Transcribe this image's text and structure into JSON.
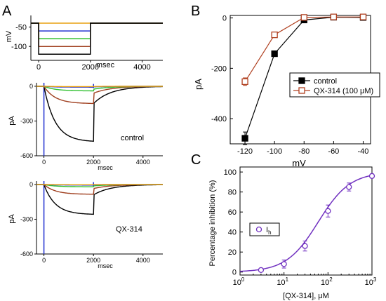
{
  "chart_data": [
    {
      "panel": "A",
      "type": "line",
      "subplots": [
        {
          "id": "protocol",
          "ylabel": "mV",
          "xlabel": "msec",
          "y_ticks": [
            "-50",
            "-100"
          ],
          "x_ticks": [
            "0",
            "2000",
            "4000"
          ],
          "ylim": [
            -125,
            -20
          ],
          "xlim": [
            -300,
            4800
          ],
          "series": [
            {
              "color": "#e8a010",
              "x": [
                -300,
                4800
              ],
              "y": [
                -40,
                -40
              ]
            },
            {
              "color": "#2030d0",
              "x": [
                -300,
                0,
                0,
                2000,
                2000,
                4800
              ],
              "y": [
                -40,
                -40,
                -60,
                -60,
                -40,
                -40
              ]
            },
            {
              "color": "#30c030",
              "x": [
                -300,
                0,
                0,
                2000,
                2000,
                4800
              ],
              "y": [
                -40,
                -40,
                -80,
                -80,
                -40,
                -40
              ]
            },
            {
              "color": "#a04020",
              "x": [
                -300,
                0,
                0,
                2000,
                2000,
                4800
              ],
              "y": [
                -40,
                -40,
                -100,
                -100,
                -40,
                -40
              ]
            },
            {
              "color": "#000000",
              "x": [
                -300,
                0,
                0,
                2000,
                2000,
                4800
              ],
              "y": [
                -40,
                -40,
                -120,
                -120,
                -40,
                -40
              ]
            }
          ]
        },
        {
          "id": "control-currents",
          "ylabel": "pA",
          "xlabel": "msec",
          "annotation": "control",
          "y_ticks": [
            "0",
            "-300",
            "-600"
          ],
          "x_ticks": [
            "0",
            "2000",
            "4000"
          ],
          "ylim": [
            -600,
            30
          ],
          "xlim": [
            -300,
            4800
          ],
          "traces": [
            {
              "color": "#000000",
              "amplitude": -480,
              "tail": -150
            },
            {
              "color": "#a04020",
              "amplitude": -150,
              "tail": -60
            },
            {
              "color": "#30c030",
              "amplitude": -40,
              "tail": -25
            },
            {
              "color": "#2030d0",
              "amplitude": -8,
              "tail": -5
            },
            {
              "color": "#e8a010",
              "amplitude": -3,
              "tail": -2
            }
          ]
        },
        {
          "id": "qx314-currents",
          "ylabel": "pA",
          "xlabel": "msec",
          "annotation": "QX-314",
          "y_ticks": [
            "0",
            "-300",
            "-600"
          ],
          "x_ticks": [
            "0",
            "2000",
            "4000"
          ],
          "ylim": [
            -600,
            30
          ],
          "xlim": [
            -300,
            4800
          ],
          "traces": [
            {
              "color": "#000000",
              "amplitude": -260,
              "tail": -90
            },
            {
              "color": "#a04020",
              "amplitude": -85,
              "tail": -35
            },
            {
              "color": "#30c030",
              "amplitude": -20,
              "tail": -12
            },
            {
              "color": "#2030d0",
              "amplitude": -5,
              "tail": -3
            },
            {
              "color": "#e8a010",
              "amplitude": -2,
              "tail": -1
            }
          ]
        }
      ]
    },
    {
      "panel": "B",
      "type": "line",
      "xlabel": "mV",
      "ylabel": "pA",
      "x_ticks": [
        "-120",
        "-100",
        "-80",
        "-60",
        "-40"
      ],
      "y_ticks": [
        "0",
        "-200",
        "-400"
      ],
      "xlim": [
        -130,
        -35
      ],
      "ylim": [
        -500,
        10
      ],
      "legend_position": "center-right",
      "series": [
        {
          "name": "control",
          "color": "#000000",
          "marker": "filled-square",
          "x": [
            -120,
            -100,
            -80,
            -60,
            -40
          ],
          "y": [
            -478,
            -142,
            -8,
            3,
            2
          ],
          "err": [
            25,
            8,
            5,
            5,
            4
          ]
        },
        {
          "name": "QX-314 (100 μM)",
          "color": "#b04020",
          "marker": "open-square",
          "x": [
            -120,
            -100,
            -80,
            -60,
            -40
          ],
          "y": [
            -253,
            -67,
            2,
            4,
            4
          ],
          "err": [
            15,
            6,
            4,
            4,
            4
          ]
        }
      ]
    },
    {
      "panel": "C",
      "type": "scatter",
      "xlabel": "[QX-314], μM",
      "ylabel": "Percentage inhibition (%)",
      "x_scale": "log",
      "x_ticks": [
        "10",
        "10",
        "10",
        "10"
      ],
      "x_tick_exponents": [
        "0",
        "1",
        "2",
        "3"
      ],
      "y_ticks": [
        "0",
        "20",
        "40",
        "60",
        "80",
        "100"
      ],
      "xlim": [
        1,
        1000
      ],
      "ylim": [
        0,
        100
      ],
      "legend_label": "I",
      "legend_subscript": "h",
      "series": [
        {
          "color": "#7030c0",
          "marker": "open-circle",
          "x": [
            3,
            10,
            30,
            100,
            300,
            1000
          ],
          "y": [
            2,
            8,
            26,
            61,
            85,
            96
          ],
          "err": [
            1,
            4,
            5,
            6,
            4,
            2
          ]
        }
      ],
      "fit": {
        "color": "#7030c0",
        "ic50": 60,
        "hill": 1.2,
        "top": 100
      }
    }
  ]
}
